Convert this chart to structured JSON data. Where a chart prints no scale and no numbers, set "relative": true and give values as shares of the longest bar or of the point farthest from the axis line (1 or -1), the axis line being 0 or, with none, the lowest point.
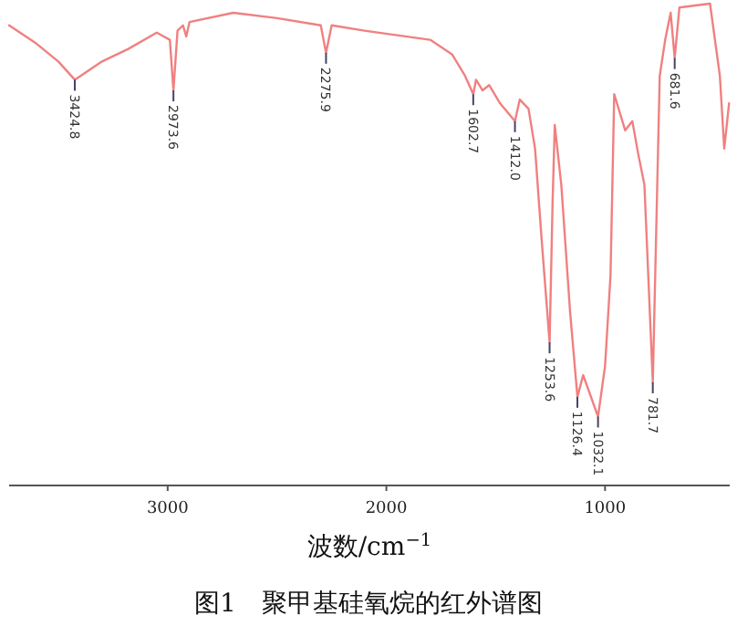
{
  "chart_data": {
    "type": "line",
    "title": "图1　聚甲基硅氧烷的红外谱图",
    "xlabel": "波数/cm$^{−1}$",
    "relative": true,
    "color": "#f08080",
    "xlim": [
      3725,
      430
    ],
    "xticks": [
      3000,
      2000,
      1000
    ],
    "tick_labels": "x",
    "grid": false,
    "x": [
      3725,
      3600,
      3500,
      3424.8,
      3300,
      3180,
      3050,
      2990,
      2973.6,
      2955,
      2930,
      2915,
      2900,
      2700,
      2500,
      2300,
      2275.9,
      2250,
      2100,
      1800,
      1700,
      1640,
      1602.7,
      1590,
      1560,
      1530,
      1480,
      1412,
      1390,
      1350,
      1320,
      1290,
      1253.6,
      1240,
      1230,
      1200,
      1160,
      1126.4,
      1100,
      1032.1,
      1000,
      975,
      958,
      908,
      875,
      850,
      820,
      781.7,
      750,
      725,
      700,
      681.6,
      660,
      520,
      475,
      455,
      433
    ],
    "values": [
      0.955,
      0.917,
      0.88,
      0.842,
      0.88,
      0.906,
      0.94,
      0.925,
      0.82,
      0.944,
      0.955,
      0.932,
      0.962,
      0.981,
      0.97,
      0.955,
      0.898,
      0.955,
      0.944,
      0.925,
      0.895,
      0.85,
      0.812,
      0.842,
      0.82,
      0.831,
      0.793,
      0.756,
      0.801,
      0.782,
      0.699,
      0.511,
      0.297,
      0.586,
      0.748,
      0.624,
      0.361,
      0.184,
      0.229,
      0.143,
      0.248,
      0.436,
      0.812,
      0.737,
      0.756,
      0.692,
      0.624,
      0.214,
      0.85,
      0.925,
      0.981,
      0.887,
      0.992,
      1.0,
      0.85,
      0.699,
      0.793
    ],
    "annotations": [
      {
        "text": "3424.8",
        "x": 3424.8,
        "y": 0.842
      },
      {
        "text": "2973.6",
        "x": 2973.6,
        "y": 0.82
      },
      {
        "text": "2275.9",
        "x": 2275.9,
        "y": 0.898
      },
      {
        "text": "1602.7",
        "x": 1602.7,
        "y": 0.812
      },
      {
        "text": "1412.0",
        "x": 1412,
        "y": 0.756
      },
      {
        "text": "1253.6",
        "x": 1253.6,
        "y": 0.297
      },
      {
        "text": "1126.4",
        "x": 1126.4,
        "y": 0.184
      },
      {
        "text": "1032.1",
        "x": 1032.1,
        "y": 0.143
      },
      {
        "text": "781.7",
        "x": 781.7,
        "y": 0.214
      },
      {
        "text": "681.6",
        "x": 681.6,
        "y": 0.887
      }
    ]
  }
}
